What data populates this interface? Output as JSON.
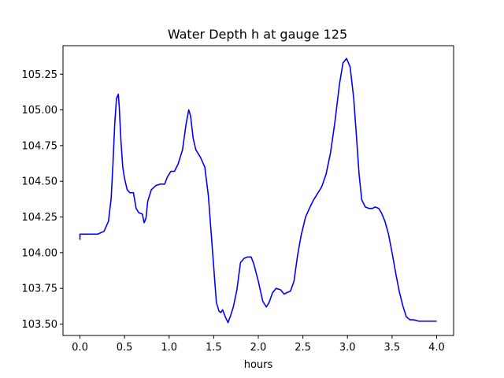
{
  "chart_data": {
    "type": "line",
    "title": "Water Depth h at gauge 125",
    "xlabel": "hours",
    "ylabel": "",
    "xlim": [
      -0.19,
      4.19
    ],
    "ylim": [
      103.42,
      105.45
    ],
    "xticks": [
      0.0,
      0.5,
      1.0,
      1.5,
      2.0,
      2.5,
      3.0,
      3.5,
      4.0
    ],
    "xtick_labels": [
      "0.0",
      "0.5",
      "1.0",
      "1.5",
      "2.0",
      "2.5",
      "3.0",
      "3.5",
      "4.0"
    ],
    "yticks": [
      103.5,
      103.75,
      104.0,
      104.25,
      104.5,
      104.75,
      105.0,
      105.25
    ],
    "ytick_labels": [
      "103.50",
      "103.75",
      "104.00",
      "104.25",
      "104.50",
      "104.75",
      "105.00",
      "105.25"
    ],
    "grid": false,
    "series": [
      {
        "color": "#0000ff",
        "x": [
          0.0,
          0.0,
          0.02,
          0.1,
          0.2,
          0.27,
          0.32,
          0.35,
          0.37,
          0.39,
          0.41,
          0.43,
          0.44,
          0.46,
          0.48,
          0.5,
          0.53,
          0.56,
          0.6,
          0.63,
          0.66,
          0.7,
          0.72,
          0.74,
          0.76,
          0.8,
          0.85,
          0.9,
          0.95,
          0.98,
          1.02,
          1.06,
          1.1,
          1.15,
          1.19,
          1.22,
          1.24,
          1.27,
          1.3,
          1.35,
          1.4,
          1.44,
          1.47,
          1.5,
          1.53,
          1.56,
          1.58,
          1.6,
          1.63,
          1.66,
          1.69,
          1.72,
          1.76,
          1.8,
          1.84,
          1.88,
          1.92,
          1.95,
          2.0,
          2.05,
          2.09,
          2.12,
          2.16,
          2.2,
          2.25,
          2.29,
          2.32,
          2.36,
          2.4,
          2.44,
          2.48,
          2.53,
          2.58,
          2.62,
          2.66,
          2.71,
          2.76,
          2.81,
          2.86,
          2.91,
          2.95,
          2.99,
          3.03,
          3.07,
          3.1,
          3.13,
          3.16,
          3.2,
          3.24,
          3.28,
          3.31,
          3.35,
          3.38,
          3.42,
          3.46,
          3.5,
          3.54,
          3.58,
          3.62,
          3.66,
          3.7,
          3.74,
          3.8,
          3.86,
          3.9,
          3.94,
          3.98,
          4.0
        ],
        "y": [
          104.09,
          104.13,
          104.13,
          104.13,
          104.13,
          104.15,
          104.22,
          104.38,
          104.62,
          104.9,
          105.08,
          105.11,
          105.03,
          104.78,
          104.6,
          104.52,
          104.44,
          104.42,
          104.42,
          104.31,
          104.28,
          104.27,
          104.21,
          104.24,
          104.36,
          104.44,
          104.47,
          104.48,
          104.48,
          104.53,
          104.57,
          104.57,
          104.62,
          104.72,
          104.9,
          105.0,
          104.96,
          104.8,
          104.72,
          104.67,
          104.6,
          104.4,
          104.15,
          103.9,
          103.65,
          103.59,
          103.58,
          103.6,
          103.55,
          103.51,
          103.56,
          103.62,
          103.74,
          103.93,
          103.96,
          103.97,
          103.97,
          103.92,
          103.8,
          103.66,
          103.62,
          103.65,
          103.72,
          103.75,
          103.74,
          103.71,
          103.72,
          103.73,
          103.8,
          103.98,
          104.12,
          104.25,
          104.32,
          104.37,
          104.41,
          104.46,
          104.55,
          104.7,
          104.92,
          105.18,
          105.33,
          105.36,
          105.3,
          105.08,
          104.82,
          104.55,
          104.37,
          104.32,
          104.31,
          104.31,
          104.32,
          104.31,
          104.28,
          104.22,
          104.13,
          104.0,
          103.86,
          103.73,
          103.63,
          103.55,
          103.53,
          103.53,
          103.52,
          103.52,
          103.52,
          103.52,
          103.52,
          103.52
        ]
      }
    ]
  }
}
